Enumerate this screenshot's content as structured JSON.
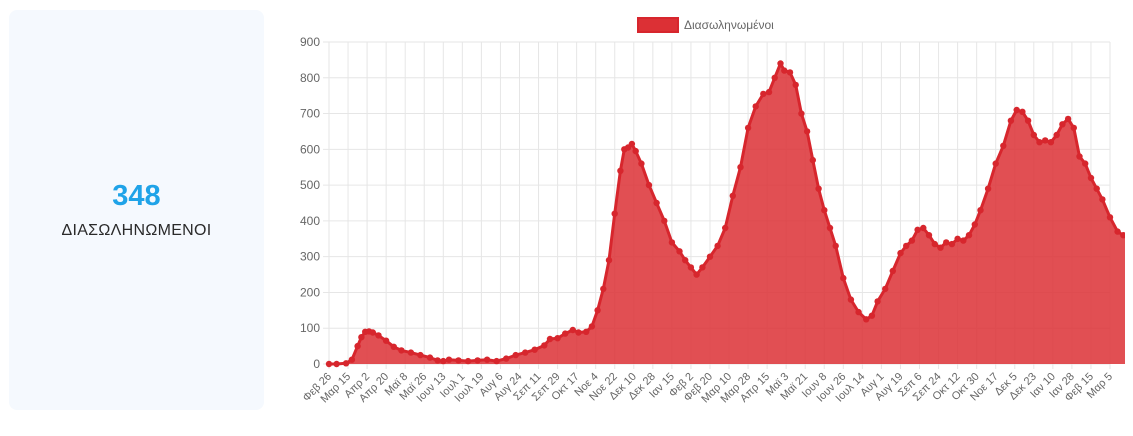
{
  "stat": {
    "value": "348",
    "label": "ΔΙΑΣΩΛΗΝΩΜΕΝΟΙ"
  },
  "colors": {
    "accent": "#1fa3e8",
    "series_fill": "#dc3035",
    "series_stroke": "#d7262d",
    "card_bg": "#f5f9fe",
    "grid": "#e6e6e6"
  },
  "chart_data": {
    "type": "area",
    "xlabel": "",
    "ylabel": "",
    "ylim": [
      0,
      900
    ],
    "yticks": [
      0,
      100,
      200,
      300,
      400,
      500,
      600,
      700,
      800,
      900
    ],
    "grid": true,
    "legend_position": "top-center",
    "x_tick_labels": [
      "Φεβ 26",
      "Μαρ 15",
      "Απρ 2",
      "Απρ 20",
      "Μαϊ 8",
      "Μαϊ 26",
      "Ιουν 13",
      "Ιουλ 1",
      "Ιουλ 19",
      "Αυγ 6",
      "Αυγ 24",
      "Σεπ 11",
      "Σεπ 29",
      "Οκτ 17",
      "Νοε 4",
      "Νοε 22",
      "Δεκ 10",
      "Δεκ 28",
      "Ιαν 15",
      "Φεβ 2",
      "Φεβ 20",
      "Μαρ 10",
      "Μαρ 28",
      "Απρ 15",
      "Μαϊ 3",
      "Μαϊ 21",
      "Ιουν 8",
      "Ιουν 26",
      "Ιουλ 14",
      "Αυγ 1",
      "Αυγ 19",
      "Σεπ 6",
      "Σεπ 24",
      "Οκτ 12",
      "Οκτ 30",
      "Νοε 17",
      "Δεκ 5",
      "Δεκ 23",
      "Ιαν 10",
      "Ιαν 28",
      "Φεβ 15",
      "Μαρ 5"
    ],
    "series": [
      {
        "name": "Διασωληνωμένοι",
        "points": [
          [
            0,
            0
          ],
          [
            0.4,
            0
          ],
          [
            0.9,
            2
          ],
          [
            1.2,
            12
          ],
          [
            1.5,
            50
          ],
          [
            1.7,
            75
          ],
          [
            1.9,
            90
          ],
          [
            2.1,
            91
          ],
          [
            2.3,
            88
          ],
          [
            2.6,
            80
          ],
          [
            3,
            65
          ],
          [
            3.4,
            48
          ],
          [
            3.8,
            38
          ],
          [
            4.3,
            32
          ],
          [
            4.8,
            25
          ],
          [
            5.3,
            18
          ],
          [
            5.7,
            10
          ],
          [
            6,
            8
          ],
          [
            6.3,
            12
          ],
          [
            6.8,
            10
          ],
          [
            7.3,
            8
          ],
          [
            7.8,
            10
          ],
          [
            8.3,
            12
          ],
          [
            8.8,
            8
          ],
          [
            9.3,
            15
          ],
          [
            9.8,
            25
          ],
          [
            10.3,
            32
          ],
          [
            10.8,
            40
          ],
          [
            11.3,
            52
          ],
          [
            11.6,
            70
          ],
          [
            12,
            72
          ],
          [
            12.4,
            85
          ],
          [
            12.8,
            95
          ],
          [
            13.1,
            88
          ],
          [
            13.5,
            90
          ],
          [
            13.8,
            105
          ],
          [
            14.1,
            150
          ],
          [
            14.4,
            210
          ],
          [
            14.7,
            290
          ],
          [
            15,
            420
          ],
          [
            15.3,
            540
          ],
          [
            15.5,
            600
          ],
          [
            15.7,
            605
          ],
          [
            15.9,
            615
          ],
          [
            16.1,
            595
          ],
          [
            16.4,
            560
          ],
          [
            16.8,
            500
          ],
          [
            17.2,
            450
          ],
          [
            17.6,
            400
          ],
          [
            18,
            340
          ],
          [
            18.4,
            315
          ],
          [
            18.7,
            290
          ],
          [
            19,
            270
          ],
          [
            19.3,
            250
          ],
          [
            19.6,
            270
          ],
          [
            20,
            300
          ],
          [
            20.4,
            330
          ],
          [
            20.8,
            380
          ],
          [
            21.2,
            470
          ],
          [
            21.6,
            550
          ],
          [
            22,
            660
          ],
          [
            22.4,
            720
          ],
          [
            22.8,
            755
          ],
          [
            23.1,
            760
          ],
          [
            23.4,
            800
          ],
          [
            23.7,
            840
          ],
          [
            23.9,
            820
          ],
          [
            24.2,
            815
          ],
          [
            24.5,
            780
          ],
          [
            24.8,
            700
          ],
          [
            25.1,
            650
          ],
          [
            25.4,
            570
          ],
          [
            25.7,
            490
          ],
          [
            26,
            430
          ],
          [
            26.3,
            380
          ],
          [
            26.6,
            330
          ],
          [
            27,
            240
          ],
          [
            27.4,
            180
          ],
          [
            27.8,
            145
          ],
          [
            28.2,
            125
          ],
          [
            28.5,
            135
          ],
          [
            28.8,
            175
          ],
          [
            29.2,
            210
          ],
          [
            29.6,
            260
          ],
          [
            30,
            310
          ],
          [
            30.3,
            330
          ],
          [
            30.6,
            345
          ],
          [
            30.9,
            375
          ],
          [
            31.2,
            380
          ],
          [
            31.5,
            360
          ],
          [
            31.8,
            335
          ],
          [
            32.1,
            325
          ],
          [
            32.4,
            340
          ],
          [
            32.7,
            335
          ],
          [
            33,
            350
          ],
          [
            33.3,
            345
          ],
          [
            33.6,
            360
          ],
          [
            33.9,
            390
          ],
          [
            34.2,
            430
          ],
          [
            34.6,
            490
          ],
          [
            35,
            560
          ],
          [
            35.4,
            610
          ],
          [
            35.8,
            680
          ],
          [
            36.1,
            710
          ],
          [
            36.4,
            705
          ],
          [
            36.7,
            680
          ],
          [
            37,
            640
          ],
          [
            37.3,
            620
          ],
          [
            37.6,
            625
          ],
          [
            37.9,
            620
          ],
          [
            38.2,
            640
          ],
          [
            38.5,
            670
          ],
          [
            38.8,
            685
          ],
          [
            39.1,
            660
          ],
          [
            39.4,
            580
          ],
          [
            39.7,
            560
          ],
          [
            40,
            520
          ],
          [
            40.3,
            490
          ],
          [
            40.6,
            460
          ],
          [
            41,
            410
          ],
          [
            41.4,
            370
          ],
          [
            41.7,
            360
          ],
          [
            42,
            348
          ]
        ]
      }
    ]
  }
}
